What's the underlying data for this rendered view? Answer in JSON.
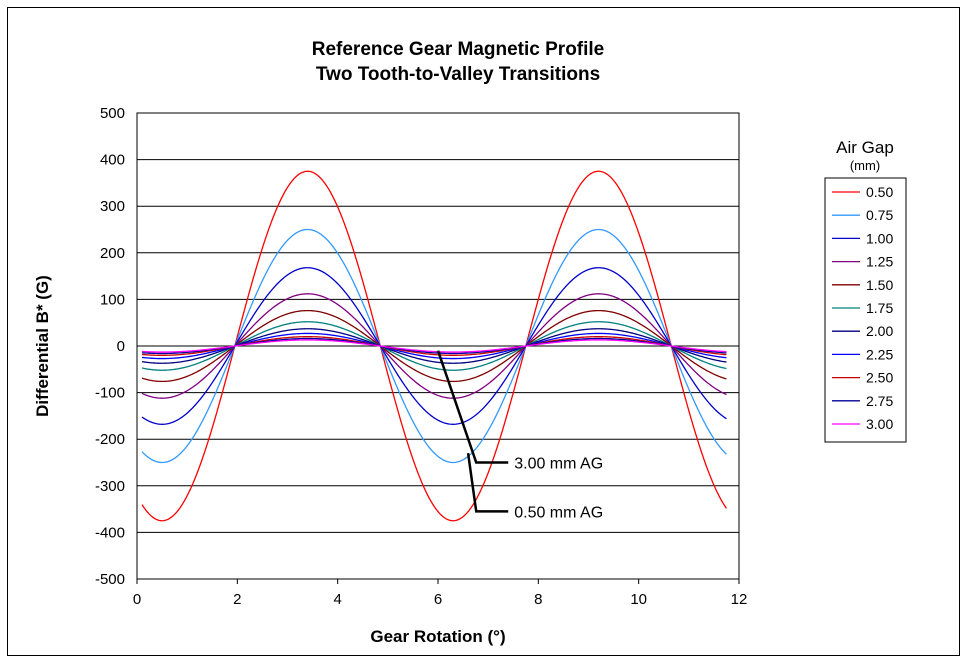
{
  "chart_data": {
    "type": "line",
    "title": [
      "Reference Gear Magnetic Profile",
      "Two Tooth-to-Valley Transitions"
    ],
    "xlabel": "Gear Rotation (°)",
    "ylabel": "Differential B* (G)",
    "xlim": [
      0,
      12
    ],
    "ylim": [
      -500,
      500
    ],
    "xticks": [
      "0",
      "2",
      "4",
      "6",
      "8",
      "10",
      "12"
    ],
    "yticks": [
      "500",
      "400",
      "300",
      "200",
      "100",
      "0",
      "-100",
      "-200",
      "-300",
      "-400",
      "-500"
    ],
    "grid": "horizontal",
    "legend_title": "Air Gap",
    "legend_subtitle": "(mm)",
    "legend_position": "right",
    "series": [
      {
        "name": "0.50",
        "color": "#ff0000",
        "amplitude": 375
      },
      {
        "name": "0.75",
        "color": "#3399ff",
        "amplitude": 250
      },
      {
        "name": "1.00",
        "color": "#0000cc",
        "amplitude": 168
      },
      {
        "name": "1.25",
        "color": "#800080",
        "amplitude": 112
      },
      {
        "name": "1.50",
        "color": "#800000",
        "amplitude": 76
      },
      {
        "name": "1.75",
        "color": "#008080",
        "amplitude": 52
      },
      {
        "name": "2.00",
        "color": "#000080",
        "amplitude": 37
      },
      {
        "name": "2.25",
        "color": "#0000ff",
        "amplitude": 27
      },
      {
        "name": "2.50",
        "color": "#cc0000",
        "amplitude": 20
      },
      {
        "name": "2.75",
        "color": "#000099",
        "amplitude": 16
      },
      {
        "name": "3.00",
        "color": "#ff00ff",
        "amplitude": 13
      }
    ],
    "waveform": {
      "x_min": 0.1,
      "x_max": 11.75,
      "period": 5.8,
      "first_peak_x": 3.4
    },
    "annotations": [
      {
        "text": "3.00 mm AG",
        "point_x": 6.0,
        "point_y": -10,
        "label_x": 7.4,
        "label_y": -250
      },
      {
        "text": "0.50 mm AG",
        "point_x": 6.6,
        "point_y": -230,
        "label_x": 7.4,
        "label_y": -355
      }
    ]
  }
}
